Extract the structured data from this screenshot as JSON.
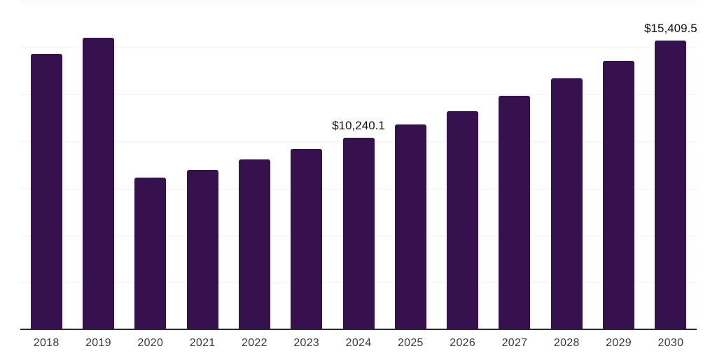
{
  "chart_data": {
    "type": "bar",
    "title": "",
    "xlabel": "",
    "ylabel": "",
    "categories": [
      "2018",
      "2019",
      "2020",
      "2021",
      "2022",
      "2023",
      "2024",
      "2025",
      "2026",
      "2027",
      "2028",
      "2029",
      "2030"
    ],
    "values": [
      14700,
      15580,
      8100,
      8540,
      9070,
      9660,
      10240.1,
      10960,
      11670,
      12460,
      13390,
      14350,
      15409.5
    ],
    "annotations": [
      {
        "category": "2024",
        "label": "$10,240.1"
      },
      {
        "category": "2030",
        "label": "$15,409.5"
      }
    ],
    "ylim": [
      0,
      17500
    ],
    "gridline_step": 2500,
    "grid": true,
    "legend": false,
    "bar_color": "#35114d",
    "gridline_color": "#f1f1f1",
    "axis_color": "#2b2b2b",
    "tick_label_color": "#3b3b3b",
    "value_label_color": "#111111"
  }
}
